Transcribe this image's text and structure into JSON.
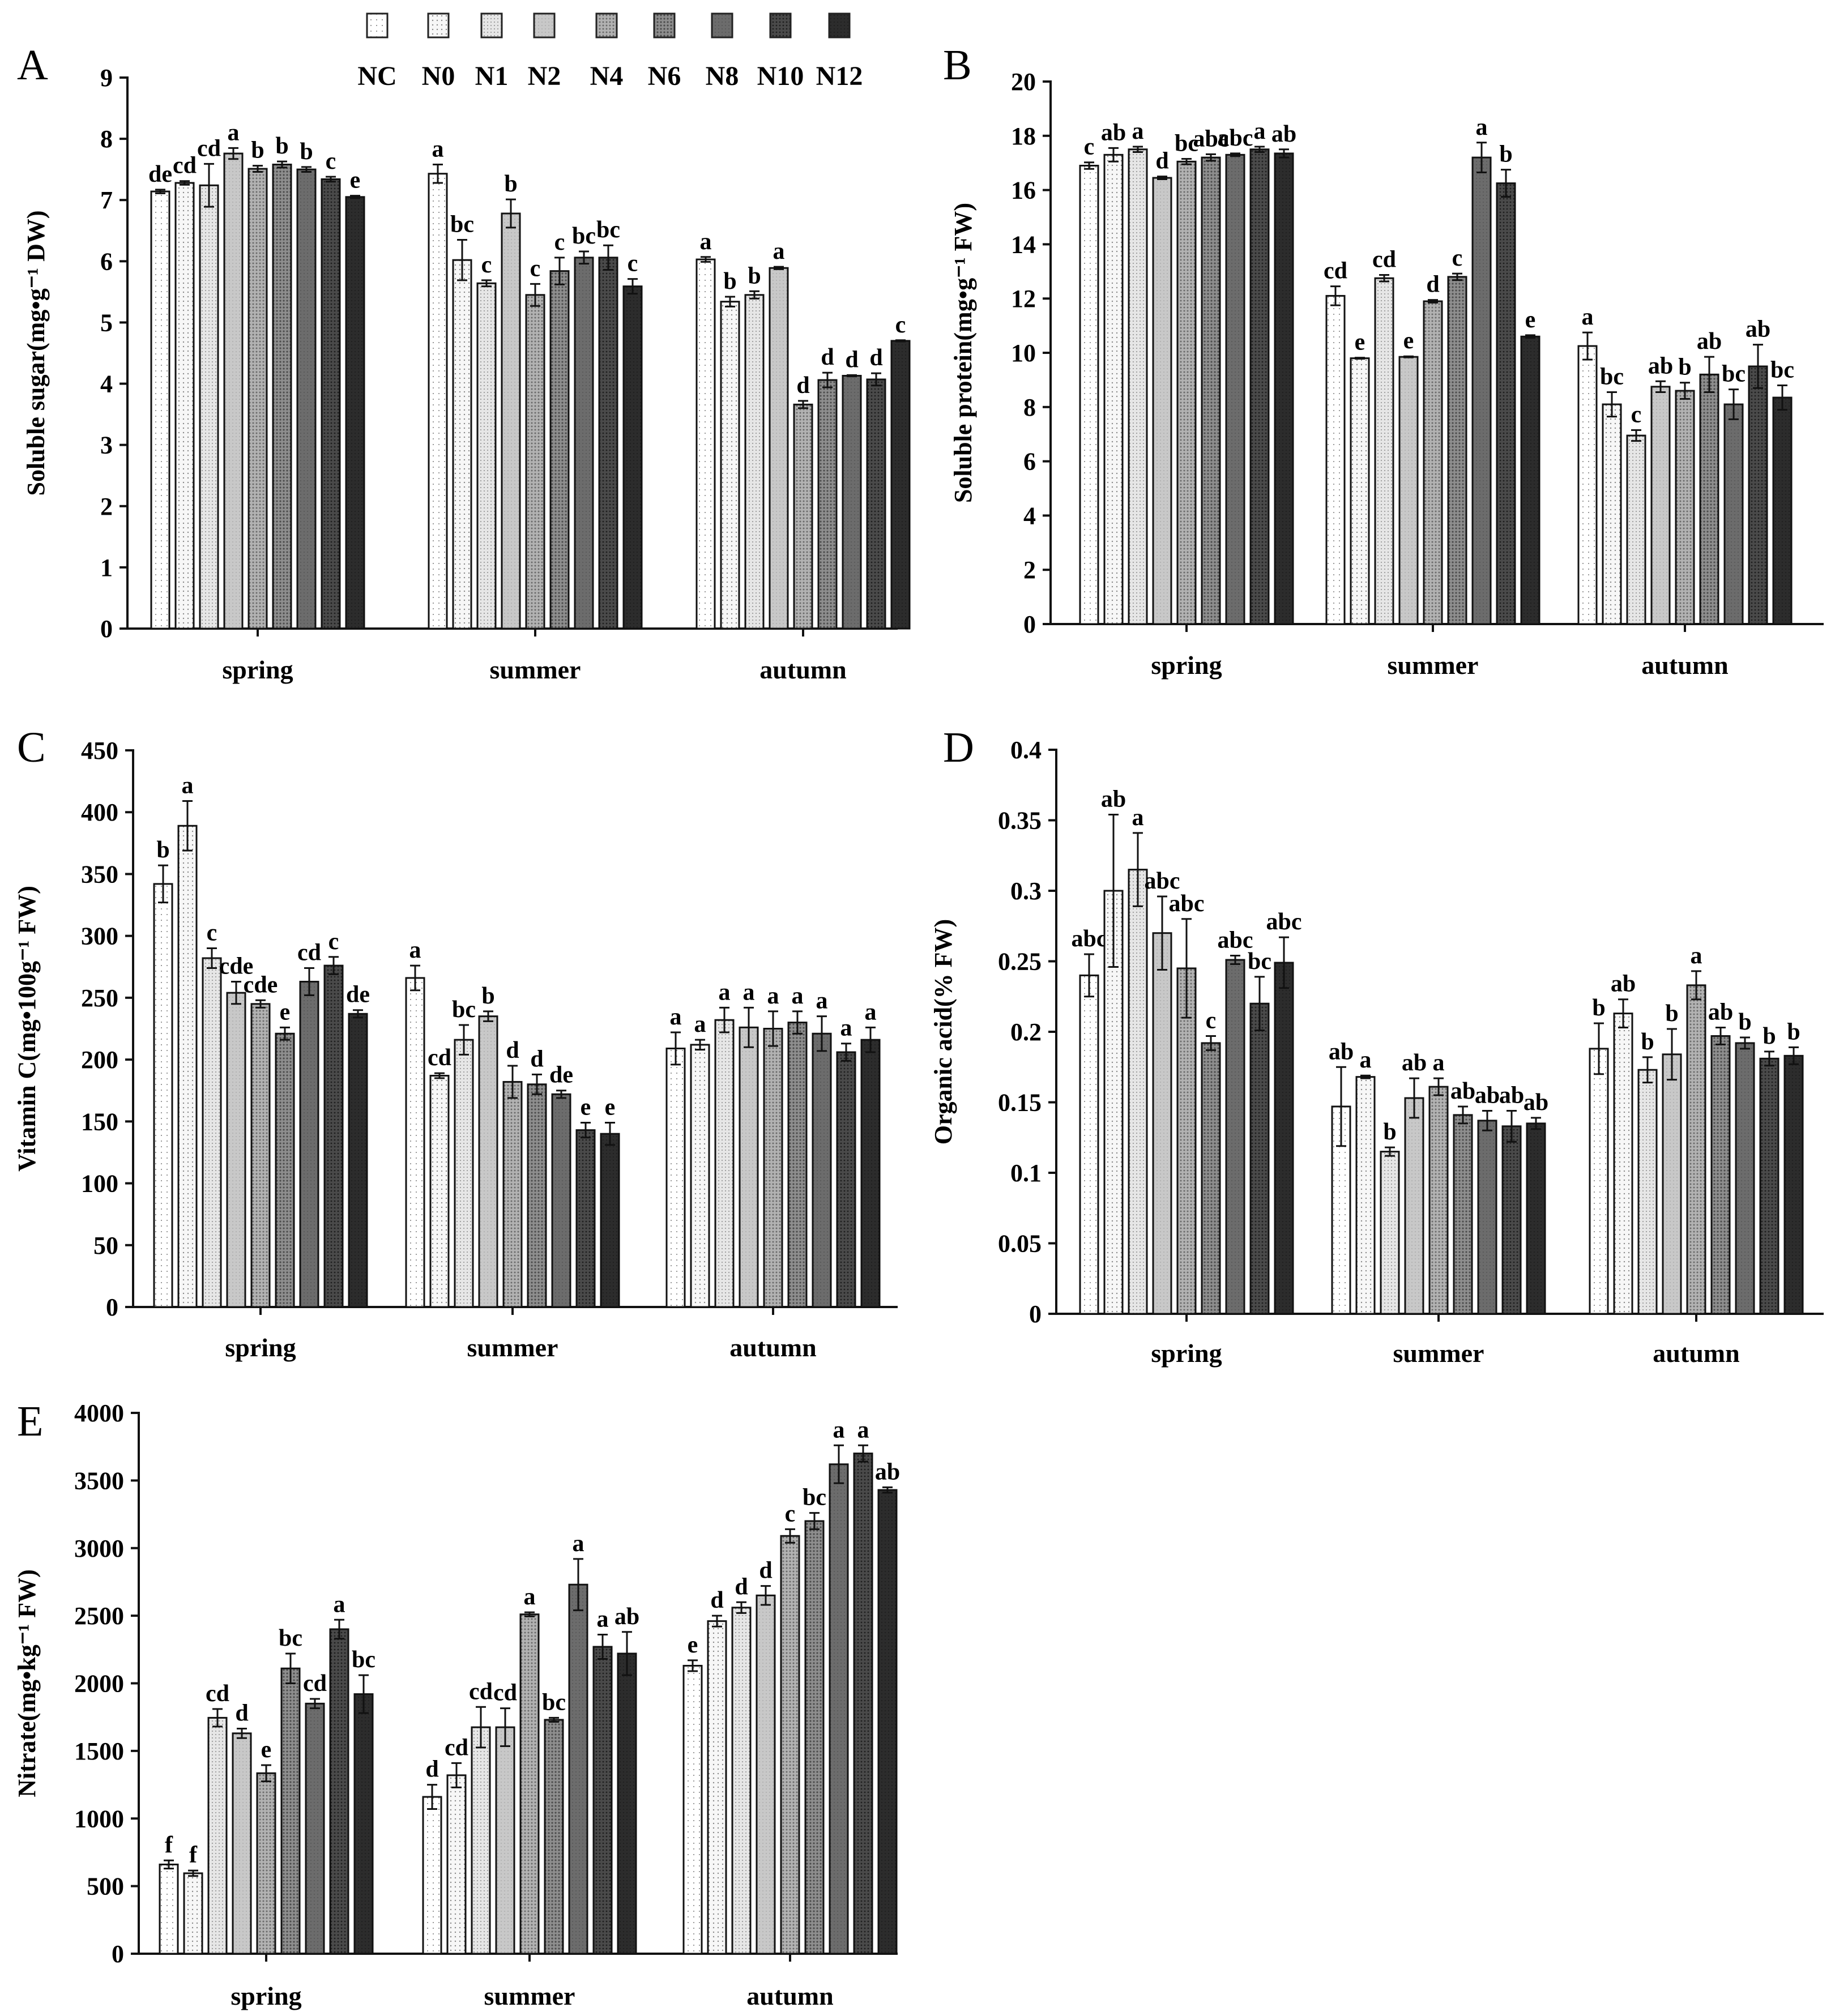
{
  "legend": {
    "entries": [
      "NC",
      "N0",
      "N1",
      "N2",
      "N4",
      "N6",
      "N8",
      "N10",
      "N12"
    ],
    "fills": [
      "#ffffff",
      "#f4f4f4",
      "#e0e0e0",
      "#c6c6c6",
      "#a8a8a8",
      "#8c8c8c",
      "#6e6e6e",
      "#4d4d4d",
      "#2c2c2c"
    ]
  },
  "chart_data": [
    {
      "panel": "A",
      "type": "bar",
      "ylabel": "Soluble sugar(mg•g⁻¹ DW)",
      "ylim": [
        0,
        9
      ],
      "yticks": [
        "0",
        "1",
        "2",
        "3",
        "4",
        "5",
        "6",
        "7",
        "8",
        "9"
      ],
      "categories": [
        "spring",
        "summer",
        "autumn"
      ],
      "series_names": [
        "NC",
        "N0",
        "N1",
        "N2",
        "N4",
        "N6",
        "N8",
        "N10",
        "N12"
      ],
      "values": [
        [
          7.14,
          7.28,
          7.24,
          7.76,
          7.51,
          7.58,
          7.5,
          7.34,
          7.05
        ],
        [
          7.43,
          6.02,
          5.64,
          6.78,
          5.45,
          5.84,
          6.06,
          6.06,
          5.59
        ],
        [
          6.03,
          5.34,
          5.45,
          5.89,
          3.66,
          4.06,
          4.13,
          4.07,
          4.7
        ]
      ],
      "errors": [
        [
          0.03,
          0.03,
          0.35,
          0.09,
          0.05,
          0.05,
          0.04,
          0.04,
          0.02
        ],
        [
          0.15,
          0.33,
          0.05,
          0.23,
          0.18,
          0.22,
          0.1,
          0.2,
          0.12
        ],
        [
          0.04,
          0.08,
          0.06,
          0.02,
          0.06,
          0.12,
          0.01,
          0.1,
          0.01
        ]
      ],
      "labels": [
        [
          "de",
          "cd",
          "cd",
          "a",
          "b",
          "b",
          "b",
          "c",
          "e"
        ],
        [
          "a",
          "bc",
          "c",
          "b",
          "c",
          "c",
          "bc",
          "bc",
          "c"
        ],
        [
          "a",
          "b",
          "b",
          "a",
          "d",
          "d",
          "d",
          "d",
          "c"
        ]
      ]
    },
    {
      "panel": "B",
      "type": "bar",
      "ylabel": "Soluble protein(mg•g⁻¹ FW)",
      "ylim": [
        0,
        20
      ],
      "yticks": [
        "0",
        "2",
        "4",
        "6",
        "8",
        "10",
        "12",
        "14",
        "16",
        "18",
        "20"
      ],
      "categories": [
        "spring",
        "summer",
        "autumn"
      ],
      "series_names": [
        "NC",
        "N0",
        "N1",
        "N2",
        "N4",
        "N6",
        "N8",
        "N10",
        "N12"
      ],
      "values": [
        [
          16.9,
          17.3,
          17.5,
          16.45,
          17.05,
          17.2,
          17.3,
          17.5,
          17.35
        ],
        [
          12.1,
          9.8,
          12.75,
          9.85,
          11.9,
          12.8,
          17.2,
          16.25,
          10.6
        ],
        [
          10.25,
          8.1,
          6.95,
          8.75,
          8.6,
          9.2,
          8.1,
          9.5,
          8.35
        ]
      ],
      "errors": [
        [
          0.12,
          0.25,
          0.1,
          0.05,
          0.1,
          0.12,
          0.05,
          0.1,
          0.15
        ],
        [
          0.35,
          0.02,
          0.12,
          0.02,
          0.05,
          0.12,
          0.55,
          0.5,
          0.05
        ],
        [
          0.5,
          0.45,
          0.2,
          0.2,
          0.3,
          0.65,
          0.55,
          0.8,
          0.45
        ]
      ],
      "labels": [
        [
          "c",
          "ab",
          "a",
          "d",
          "bc",
          "abc",
          "abc",
          "a",
          "ab"
        ],
        [
          "cd",
          "e",
          "cd",
          "e",
          "d",
          "c",
          "a",
          "b",
          "e"
        ],
        [
          "a",
          "bc",
          "c",
          "ab",
          "b",
          "ab",
          "bc",
          "ab",
          "bc"
        ]
      ]
    },
    {
      "panel": "C",
      "type": "bar",
      "ylabel": "Vitamin C(mg•100g⁻¹ FW)",
      "ylim": [
        0,
        450
      ],
      "yticks": [
        "0",
        "50",
        "100",
        "150",
        "200",
        "250",
        "300",
        "350",
        "400",
        "450"
      ],
      "categories": [
        "spring",
        "summer",
        "autumn"
      ],
      "series_names": [
        "NC",
        "N0",
        "N1",
        "N2",
        "N4",
        "N6",
        "N8",
        "N10",
        "N12"
      ],
      "values": [
        [
          342,
          389,
          282,
          254,
          245,
          221,
          263,
          276,
          237
        ],
        [
          266,
          187,
          216,
          235,
          182,
          180,
          172,
          143,
          140
        ],
        [
          209,
          212,
          232,
          226,
          225,
          230,
          221,
          206,
          216
        ]
      ],
      "errors": [
        [
          15,
          20,
          8,
          9,
          3,
          5,
          11,
          7,
          3
        ],
        [
          10,
          2,
          12,
          4,
          13,
          8,
          3,
          6,
          9
        ],
        [
          13,
          4,
          10,
          16,
          14,
          9,
          14,
          7,
          10
        ]
      ],
      "labels": [
        [
          "b",
          "a",
          "c",
          "cde",
          "cde",
          "e",
          "cd",
          "c",
          "de"
        ],
        [
          "a",
          "cd",
          "bc",
          "b",
          "d",
          "d",
          "de",
          "e",
          "e"
        ],
        [
          "a",
          "a",
          "a",
          "a",
          "a",
          "a",
          "a",
          "a",
          "a"
        ]
      ]
    },
    {
      "panel": "D",
      "type": "bar",
      "ylabel": "Organic acid(% FW)",
      "ylim": [
        0,
        0.4
      ],
      "yticks": [
        "0",
        "0.05",
        "0.1",
        "0.15",
        "0.2",
        "0.25",
        "0.3",
        "0.35",
        "0.4"
      ],
      "categories": [
        "spring",
        "summer",
        "autumn"
      ],
      "series_names": [
        "NC",
        "N0",
        "N1",
        "N2",
        "N4",
        "N6",
        "N8",
        "N10",
        "N12"
      ],
      "values": [
        [
          0.24,
          0.3,
          0.315,
          0.27,
          0.245,
          0.192,
          0.251,
          0.22,
          0.249
        ],
        [
          0.147,
          0.168,
          0.115,
          0.153,
          0.161,
          0.141,
          0.137,
          0.133,
          0.135
        ],
        [
          0.188,
          0.213,
          0.173,
          0.184,
          0.233,
          0.197,
          0.192,
          0.181,
          0.183
        ]
      ],
      "errors": [
        [
          0.015,
          0.054,
          0.026,
          0.026,
          0.035,
          0.005,
          0.003,
          0.019,
          0.018
        ],
        [
          0.028,
          0.001,
          0.003,
          0.014,
          0.006,
          0.006,
          0.007,
          0.011,
          0.004
        ],
        [
          0.018,
          0.01,
          0.009,
          0.018,
          0.01,
          0.006,
          0.004,
          0.005,
          0.006
        ]
      ],
      "labels": [
        [
          "abc",
          "ab",
          "a",
          "abc",
          "abc",
          "c",
          "abc",
          "bc",
          "abc"
        ],
        [
          "ab",
          "a",
          "b",
          "ab",
          "a",
          "ab",
          "ab",
          "ab",
          "ab"
        ],
        [
          "b",
          "ab",
          "b",
          "b",
          "a",
          "ab",
          "b",
          "b",
          "b"
        ]
      ]
    },
    {
      "panel": "E",
      "type": "bar",
      "ylabel": "Nitrate(mg•kg⁻¹ FW)",
      "ylim": [
        0,
        4000
      ],
      "yticks": [
        "0",
        "500",
        "1000",
        "1500",
        "2000",
        "2500",
        "3000",
        "3500",
        "4000"
      ],
      "categories": [
        "spring",
        "summer",
        "autumn"
      ],
      "series_names": [
        "NC",
        "N0",
        "N1",
        "N2",
        "N4",
        "N6",
        "N8",
        "N10",
        "N12"
      ],
      "values": [
        [
          660,
          595,
          1745,
          1630,
          1335,
          2110,
          1850,
          2400,
          1920
        ],
        [
          1160,
          1320,
          1675,
          1675,
          2510,
          1730,
          2730,
          2270,
          2220
        ],
        [
          2130,
          2460,
          2560,
          2650,
          3090,
          3200,
          3620,
          3700,
          3430
        ]
      ],
      "errors": [
        [
          30,
          20,
          65,
          35,
          60,
          110,
          35,
          70,
          140
        ],
        [
          90,
          90,
          150,
          140,
          15,
          15,
          190,
          90,
          160
        ],
        [
          40,
          40,
          40,
          70,
          50,
          60,
          140,
          60,
          20
        ]
      ],
      "labels": [
        [
          "f",
          "f",
          "cd",
          "d",
          "e",
          "bc",
          "cd",
          "a",
          "bc"
        ],
        [
          "d",
          "cd",
          "cd",
          "cd",
          "a",
          "bc",
          "a",
          "a",
          "ab"
        ],
        [
          "e",
          "d",
          "d",
          "d",
          "c",
          "bc",
          "a",
          "a",
          "ab"
        ]
      ]
    }
  ]
}
